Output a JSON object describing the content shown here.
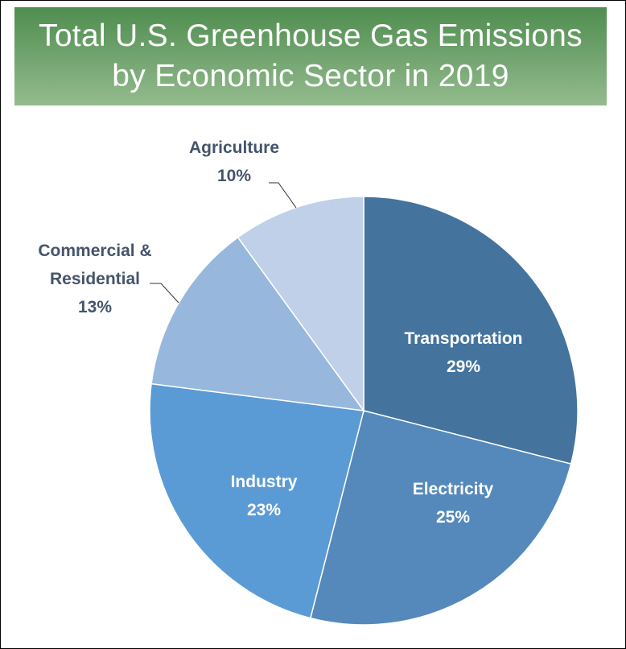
{
  "chart_data": {
    "type": "pie",
    "title": [
      "Total U.S. Greenhouse Gas Emissions",
      "by Economic Sector in 2019"
    ],
    "unit": "%",
    "start_angle": "12 o'clock",
    "direction": "clockwise",
    "slices": [
      {
        "label": [
          "Transportation"
        ],
        "value": 29,
        "value_label": "29%",
        "color": "#44739e",
        "text_color": "#ffffff"
      },
      {
        "label": [
          "Electricity"
        ],
        "value": 25,
        "value_label": "25%",
        "color": "#5589bb",
        "text_color": "#ffffff"
      },
      {
        "label": [
          "Industry"
        ],
        "value": 23,
        "value_label": "23%",
        "color": "#5b9bd5",
        "text_color": "#ffffff"
      },
      {
        "label": [
          "Commercial &",
          "Residential"
        ],
        "value": 13,
        "value_label": "13%",
        "color": "#97b8dc",
        "text_color": "#44546a"
      },
      {
        "label": [
          "Agriculture"
        ],
        "value": 10,
        "value_label": "10%",
        "color": "#bfd0e8",
        "text_color": "#44546a"
      }
    ],
    "title_background": "#5e9a5e"
  }
}
